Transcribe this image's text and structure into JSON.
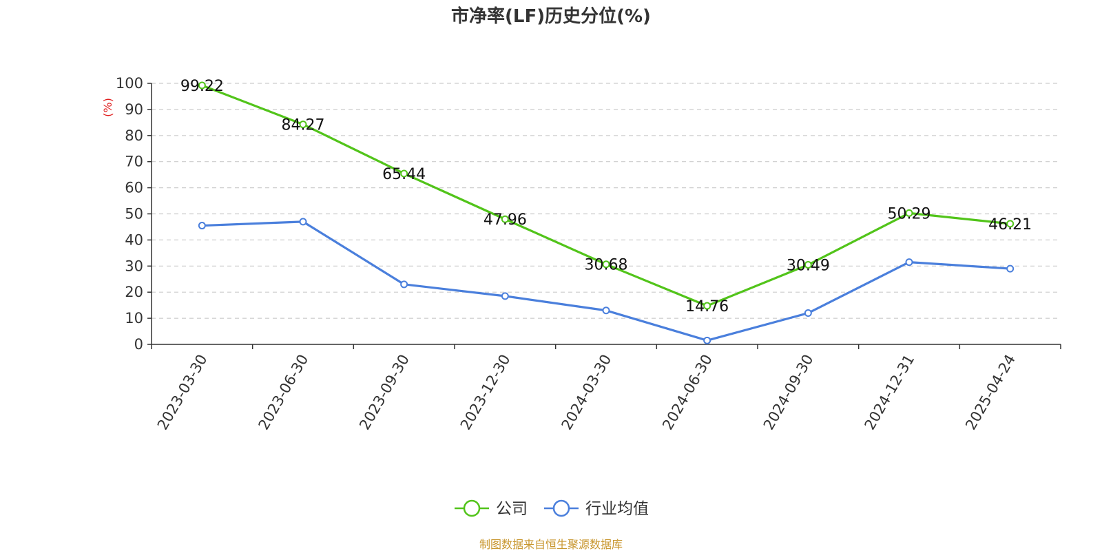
{
  "chart_data": {
    "type": "line",
    "title": "市净率(LF)历史分位(%)",
    "ylabel": "(%)",
    "xlabel": "",
    "categories": [
      "2023-03-30",
      "2023-06-30",
      "2023-09-30",
      "2023-12-30",
      "2024-03-30",
      "2024-06-30",
      "2024-09-30",
      "2024-12-31",
      "2025-04-24"
    ],
    "yticks": [
      0,
      10,
      20,
      30,
      40,
      50,
      60,
      70,
      80,
      90,
      100
    ],
    "ylim": [
      0,
      100
    ],
    "grid": true,
    "legend_position": "bottom-center",
    "series": [
      {
        "name": "公司",
        "color": "#52c41a",
        "values": [
          99.22,
          84.27,
          65.44,
          47.96,
          30.68,
          14.76,
          30.49,
          50.29,
          46.21
        ],
        "labels": [
          "99.22",
          "84.27",
          "65.44",
          "47.96",
          "30.68",
          "14.76",
          "30.49",
          "50.29",
          "46.21"
        ]
      },
      {
        "name": "行业均值",
        "color": "#4a7fdc",
        "values": [
          45.5,
          47.0,
          23.0,
          18.5,
          13.0,
          1.5,
          12.0,
          31.5,
          29.0
        ]
      }
    ],
    "source": "制图数据来自恒生聚源数据库",
    "source_color": "#c8962e",
    "ylabel_color": "#e02020"
  }
}
